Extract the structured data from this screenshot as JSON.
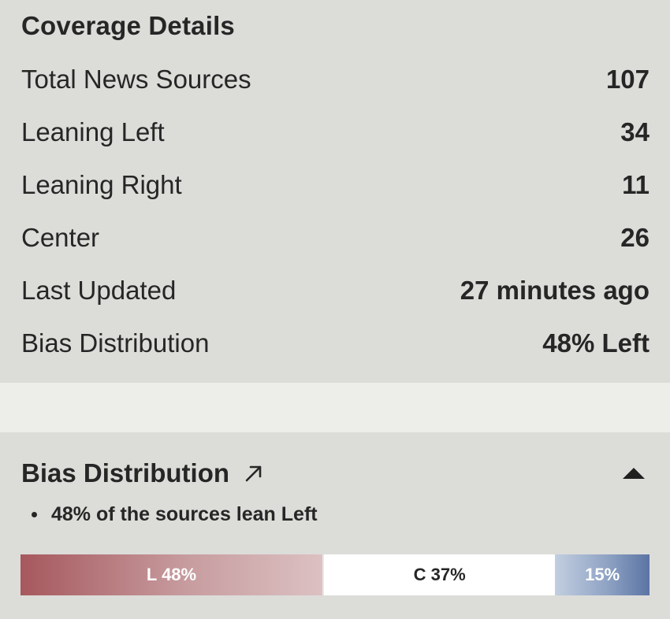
{
  "coverage": {
    "title": "Coverage Details",
    "rows": [
      {
        "label": "Total News Sources",
        "value": "107"
      },
      {
        "label": "Leaning Left",
        "value": "34"
      },
      {
        "label": "Leaning Right",
        "value": "11"
      },
      {
        "label": "Center",
        "value": "26"
      },
      {
        "label": "Last Updated",
        "value": "27 minutes ago"
      },
      {
        "label": "Bias Distribution",
        "value": "48% Left"
      }
    ]
  },
  "bias": {
    "title": "Bias Distribution",
    "title_icon": "external-arrow-icon",
    "toggle_icon": "collapse-triangle-icon",
    "summary": "48% of the sources lean Left",
    "segments": [
      {
        "key": "left",
        "label": "L 48%",
        "percent": 48,
        "color": "#a6585d"
      },
      {
        "key": "center",
        "label": "C 37%",
        "percent": 37,
        "color": "#ffffff"
      },
      {
        "key": "right",
        "label": "15%",
        "percent": 15,
        "color": "#5b74a4"
      }
    ]
  }
}
